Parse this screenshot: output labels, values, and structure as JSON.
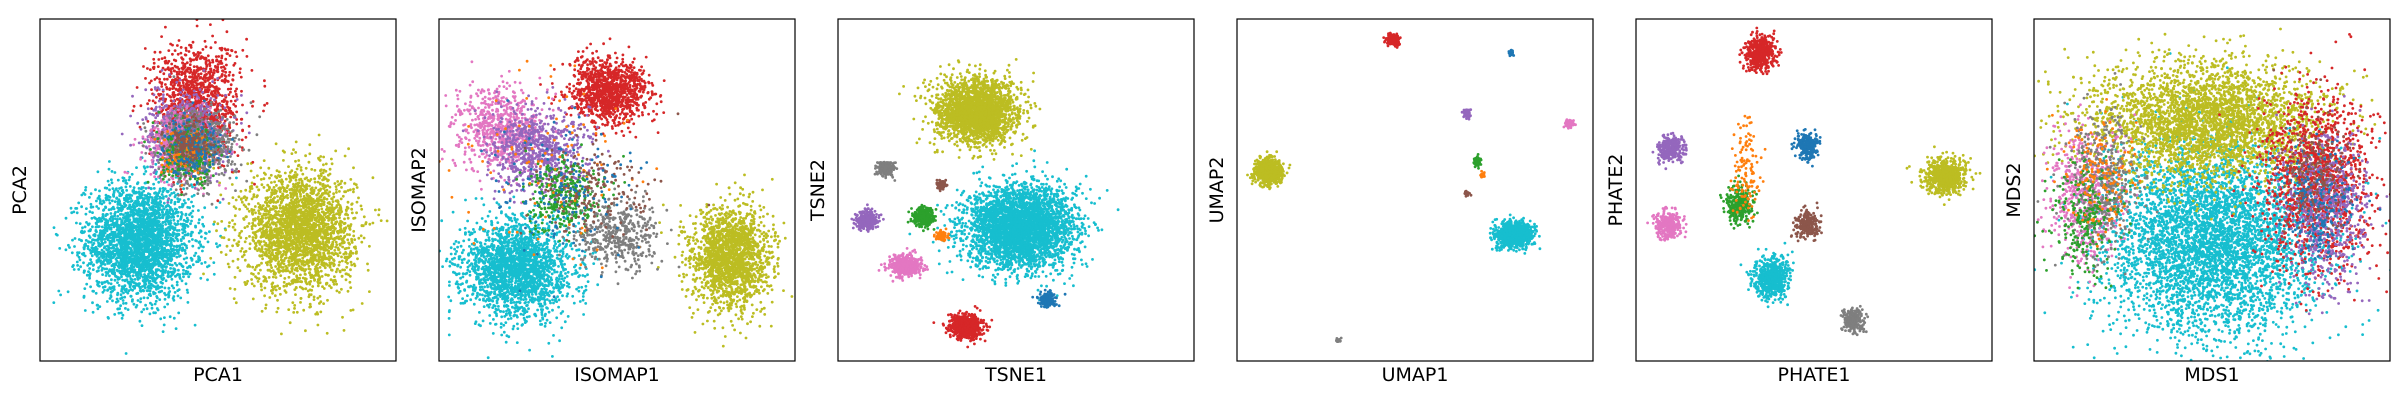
{
  "figure": {
    "background": "#ffffff"
  },
  "chart_data": [
    {
      "type": "scatter",
      "xlabel": "PCA1",
      "ylabel": "PCA2",
      "xlim": [
        0,
        1
      ],
      "ylim": [
        0,
        1
      ],
      "grid": false,
      "ticks": false,
      "clusters": [
        {
          "color": "#17becf",
          "cx": 0.28,
          "cy": 0.35,
          "sx": 0.075,
          "sy": 0.085,
          "n": 2800
        },
        {
          "color": "#bcbd22",
          "cx": 0.73,
          "cy": 0.38,
          "sx": 0.075,
          "sy": 0.085,
          "n": 2500
        },
        {
          "color": "#d62728",
          "cx": 0.44,
          "cy": 0.76,
          "sx": 0.06,
          "sy": 0.085,
          "n": 1200
        },
        {
          "color": "#9467bd",
          "cx": 0.41,
          "cy": 0.66,
          "sx": 0.055,
          "sy": 0.06,
          "n": 700
        },
        {
          "color": "#e377c2",
          "cx": 0.4,
          "cy": 0.63,
          "sx": 0.05,
          "sy": 0.05,
          "n": 500
        },
        {
          "color": "#7f7f7f",
          "cx": 0.44,
          "cy": 0.62,
          "sx": 0.055,
          "sy": 0.055,
          "n": 600
        },
        {
          "color": "#2ca02c",
          "cx": 0.42,
          "cy": 0.6,
          "sx": 0.04,
          "sy": 0.04,
          "n": 250
        },
        {
          "color": "#ff7f0e",
          "cx": 0.41,
          "cy": 0.62,
          "sx": 0.035,
          "sy": 0.035,
          "n": 120
        },
        {
          "color": "#1f77b4",
          "cx": 0.43,
          "cy": 0.63,
          "sx": 0.04,
          "sy": 0.04,
          "n": 200
        },
        {
          "color": "#8c564b",
          "cx": 0.42,
          "cy": 0.64,
          "sx": 0.035,
          "sy": 0.035,
          "n": 150
        }
      ]
    },
    {
      "type": "scatter",
      "xlabel": "ISOMAP1",
      "ylabel": "ISOMAP2",
      "xlim": [
        0,
        1
      ],
      "ylim": [
        0,
        1
      ],
      "grid": false,
      "ticks": false,
      "clusters": [
        {
          "color": "#17becf",
          "cx": 0.22,
          "cy": 0.27,
          "sx": 0.075,
          "sy": 0.07,
          "n": 2200
        },
        {
          "color": "#bcbd22",
          "cx": 0.82,
          "cy": 0.3,
          "sx": 0.055,
          "sy": 0.075,
          "n": 1800
        },
        {
          "color": "#d62728",
          "cx": 0.48,
          "cy": 0.79,
          "sx": 0.055,
          "sy": 0.045,
          "n": 1100
        },
        {
          "color": "#e377c2",
          "cx": 0.17,
          "cy": 0.68,
          "sx": 0.06,
          "sy": 0.06,
          "n": 700
        },
        {
          "color": "#9467bd",
          "cx": 0.28,
          "cy": 0.62,
          "sx": 0.07,
          "sy": 0.06,
          "n": 700
        },
        {
          "color": "#2ca02c",
          "cx": 0.35,
          "cy": 0.48,
          "sx": 0.05,
          "sy": 0.05,
          "n": 350
        },
        {
          "color": "#7f7f7f",
          "cx": 0.5,
          "cy": 0.37,
          "sx": 0.06,
          "sy": 0.05,
          "n": 450
        },
        {
          "color": "#ff7f0e",
          "cx": 0.3,
          "cy": 0.55,
          "sx": 0.12,
          "sy": 0.15,
          "n": 100
        },
        {
          "color": "#8c564b",
          "cx": 0.42,
          "cy": 0.5,
          "sx": 0.08,
          "sy": 0.07,
          "n": 180
        },
        {
          "color": "#1f77b4",
          "cx": 0.35,
          "cy": 0.5,
          "sx": 0.1,
          "sy": 0.1,
          "n": 150
        }
      ]
    },
    {
      "type": "scatter",
      "xlabel": "TSNE1",
      "ylabel": "TSNE2",
      "xlim": [
        0,
        1
      ],
      "ylim": [
        0,
        1
      ],
      "grid": false,
      "ticks": false,
      "clusters": [
        {
          "color": "#17becf",
          "cx": 0.51,
          "cy": 0.39,
          "sx": 0.075,
          "sy": 0.06,
          "n": 3500
        },
        {
          "color": "#bcbd22",
          "cx": 0.39,
          "cy": 0.73,
          "sx": 0.056,
          "sy": 0.045,
          "n": 2500
        },
        {
          "color": "#d62728",
          "cx": 0.36,
          "cy": 0.1,
          "sx": 0.022,
          "sy": 0.017,
          "n": 700
        },
        {
          "color": "#e377c2",
          "cx": 0.19,
          "cy": 0.28,
          "sx": 0.02,
          "sy": 0.016,
          "n": 500
        },
        {
          "color": "#9467bd",
          "cx": 0.08,
          "cy": 0.41,
          "sx": 0.014,
          "sy": 0.013,
          "n": 320
        },
        {
          "color": "#2ca02c",
          "cx": 0.24,
          "cy": 0.42,
          "sx": 0.015,
          "sy": 0.013,
          "n": 320
        },
        {
          "color": "#7f7f7f",
          "cx": 0.135,
          "cy": 0.56,
          "sx": 0.012,
          "sy": 0.01,
          "n": 200
        },
        {
          "color": "#1f77b4",
          "cx": 0.59,
          "cy": 0.18,
          "sx": 0.011,
          "sy": 0.01,
          "n": 180
        },
        {
          "color": "#ff7f0e",
          "cx": 0.29,
          "cy": 0.365,
          "sx": 0.008,
          "sy": 0.007,
          "n": 90
        },
        {
          "color": "#8c564b",
          "cx": 0.29,
          "cy": 0.515,
          "sx": 0.007,
          "sy": 0.007,
          "n": 70
        }
      ]
    },
    {
      "type": "scatter",
      "xlabel": "UMAP1",
      "ylabel": "UMAP2",
      "xlim": [
        0,
        1
      ],
      "ylim": [
        0,
        1
      ],
      "grid": false,
      "ticks": false,
      "clusters": [
        {
          "color": "#bcbd22",
          "cx": 0.09,
          "cy": 0.555,
          "sx": 0.018,
          "sy": 0.018,
          "n": 900
        },
        {
          "color": "#17becf",
          "cx": 0.78,
          "cy": 0.37,
          "sx": 0.025,
          "sy": 0.018,
          "n": 1000
        },
        {
          "color": "#d62728",
          "cx": 0.44,
          "cy": 0.94,
          "sx": 0.008,
          "sy": 0.008,
          "n": 200
        },
        {
          "color": "#1f77b4",
          "cx": 0.77,
          "cy": 0.9,
          "sx": 0.004,
          "sy": 0.004,
          "n": 40
        },
        {
          "color": "#9467bd",
          "cx": 0.645,
          "cy": 0.725,
          "sx": 0.005,
          "sy": 0.007,
          "n": 60
        },
        {
          "color": "#e377c2",
          "cx": 0.935,
          "cy": 0.695,
          "sx": 0.006,
          "sy": 0.006,
          "n": 80
        },
        {
          "color": "#2ca02c",
          "cx": 0.675,
          "cy": 0.585,
          "sx": 0.005,
          "sy": 0.007,
          "n": 60
        },
        {
          "color": "#ff7f0e",
          "cx": 0.69,
          "cy": 0.545,
          "sx": 0.003,
          "sy": 0.004,
          "n": 20
        },
        {
          "color": "#8c564b",
          "cx": 0.645,
          "cy": 0.49,
          "sx": 0.003,
          "sy": 0.004,
          "n": 20
        },
        {
          "color": "#7f7f7f",
          "cx": 0.285,
          "cy": 0.06,
          "sx": 0.004,
          "sy": 0.003,
          "n": 25
        }
      ]
    },
    {
      "type": "scatter",
      "xlabel": "PHATE1",
      "ylabel": "PHATE2",
      "xlim": [
        0,
        1
      ],
      "ylim": [
        0,
        1
      ],
      "grid": false,
      "ticks": false,
      "clusters": [
        {
          "color": "#bcbd22",
          "cx": 0.87,
          "cy": 0.54,
          "sx": 0.03,
          "sy": 0.025,
          "n": 700
        },
        {
          "color": "#17becf",
          "cx": 0.38,
          "cy": 0.24,
          "sx": 0.025,
          "sy": 0.03,
          "n": 600
        },
        {
          "color": "#d62728",
          "cx": 0.35,
          "cy": 0.9,
          "sx": 0.02,
          "sy": 0.025,
          "n": 500
        },
        {
          "color": "#1f77b4",
          "cx": 0.48,
          "cy": 0.63,
          "sx": 0.015,
          "sy": 0.02,
          "n": 250
        },
        {
          "color": "#9467bd",
          "cx": 0.1,
          "cy": 0.62,
          "sx": 0.02,
          "sy": 0.017,
          "n": 300
        },
        {
          "color": "#e377c2",
          "cx": 0.09,
          "cy": 0.4,
          "sx": 0.018,
          "sy": 0.02,
          "n": 300
        },
        {
          "color": "#2ca02c",
          "cx": 0.29,
          "cy": 0.46,
          "sx": 0.018,
          "sy": 0.025,
          "n": 300
        },
        {
          "color": "#8c564b",
          "cx": 0.48,
          "cy": 0.4,
          "sx": 0.02,
          "sy": 0.02,
          "n": 200
        },
        {
          "color": "#7f7f7f",
          "cx": 0.61,
          "cy": 0.12,
          "sx": 0.015,
          "sy": 0.018,
          "n": 200
        },
        {
          "color": "#ff7f0e",
          "cx": 0.31,
          "cy": 0.56,
          "sx": 0.02,
          "sy": 0.08,
          "n": 120
        }
      ]
    },
    {
      "type": "scatter",
      "xlabel": "MDS1",
      "ylabel": "MDS2",
      "xlim": [
        0,
        1
      ],
      "ylim": [
        0,
        1
      ],
      "grid": false,
      "ticks": false,
      "clusters": [
        {
          "color": "#17becf",
          "cx": 0.5,
          "cy": 0.35,
          "sx": 0.15,
          "sy": 0.14,
          "n": 4500
        },
        {
          "color": "#bcbd22",
          "cx": 0.48,
          "cy": 0.7,
          "sx": 0.16,
          "sy": 0.085,
          "n": 3200
        },
        {
          "color": "#d62728",
          "cx": 0.8,
          "cy": 0.52,
          "sx": 0.075,
          "sy": 0.13,
          "n": 1300
        },
        {
          "color": "#9467bd",
          "cx": 0.82,
          "cy": 0.44,
          "sx": 0.06,
          "sy": 0.11,
          "n": 600
        },
        {
          "color": "#e377c2",
          "cx": 0.14,
          "cy": 0.48,
          "sx": 0.05,
          "sy": 0.1,
          "n": 500
        },
        {
          "color": "#7f7f7f",
          "cx": 0.2,
          "cy": 0.52,
          "sx": 0.05,
          "sy": 0.1,
          "n": 450
        },
        {
          "color": "#2ca02c",
          "cx": 0.15,
          "cy": 0.42,
          "sx": 0.05,
          "sy": 0.08,
          "n": 250
        },
        {
          "color": "#ff7f0e",
          "cx": 0.18,
          "cy": 0.55,
          "sx": 0.05,
          "sy": 0.08,
          "n": 150
        },
        {
          "color": "#1f77b4",
          "cx": 0.8,
          "cy": 0.45,
          "sx": 0.05,
          "sy": 0.08,
          "n": 200
        },
        {
          "color": "#8c564b",
          "cx": 0.78,
          "cy": 0.55,
          "sx": 0.05,
          "sy": 0.08,
          "n": 180
        }
      ]
    }
  ]
}
